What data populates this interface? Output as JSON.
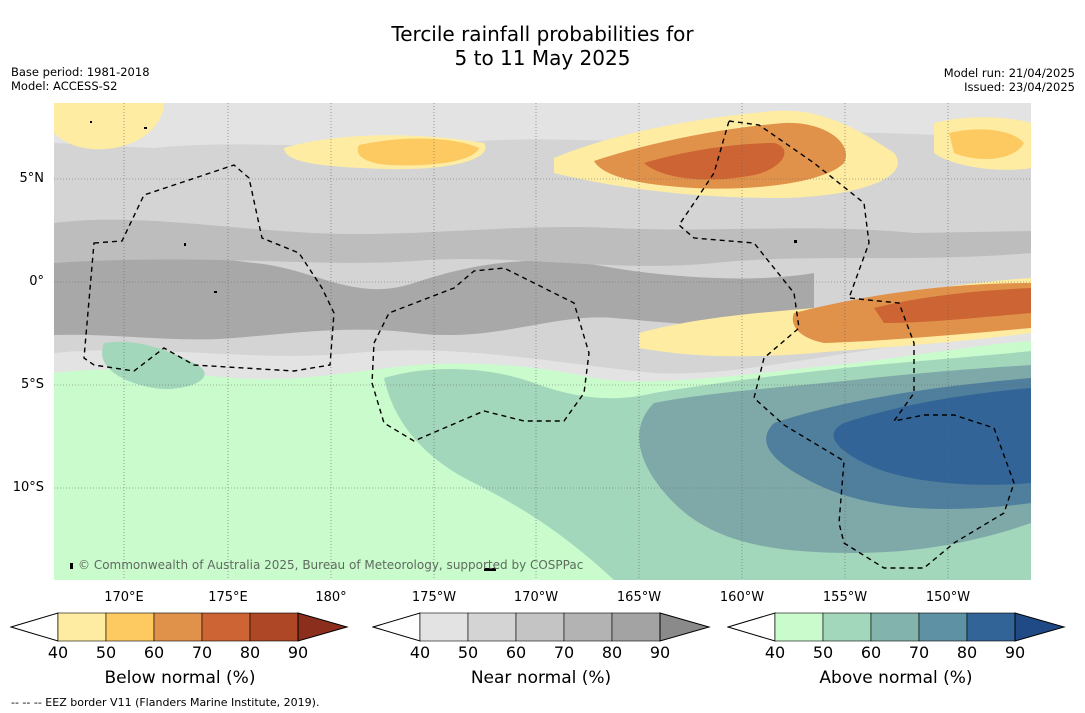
{
  "title_line1": "Tercile rainfall probabilities for",
  "title_line2": "5 to 11 May 2025",
  "base_period": "Base period: 1981-2018",
  "model": "Model: ACCESS-S2",
  "model_run": "Model run: 21/04/2025",
  "issued": "Issued: 23/04/2025",
  "copyright": "© Commonwealth of Australia 2025, Bureau of Meteorology, supported by COSPPac",
  "lat_labels": [
    "5°N",
    "0°",
    "5°S",
    "10°S"
  ],
  "lon_labels": [
    "170°E",
    "175°E",
    "180°",
    "175°W",
    "170°W",
    "165°W",
    "160°W",
    "155°W",
    "150°W"
  ],
  "colorbars": [
    {
      "title": "Below normal (%)",
      "ticks": [
        "40",
        "50",
        "60",
        "70",
        "80",
        "90"
      ],
      "colors": [
        "#ffffff",
        "#fdeca1",
        "#fdca62",
        "#e0914a",
        "#cd6433",
        "#ad4726",
        "#8b2f1c"
      ]
    },
    {
      "title": "Near normal (%)",
      "ticks": [
        "40",
        "50",
        "60",
        "70",
        "80",
        "90"
      ],
      "colors": [
        "#ffffff",
        "#e3e3e3",
        "#d4d4d4",
        "#c4c4c4",
        "#b3b3b3",
        "#a3a3a3",
        "#8a8a8a"
      ]
    },
    {
      "title": "Above normal (%)",
      "ticks": [
        "40",
        "50",
        "60",
        "70",
        "80",
        "90"
      ],
      "colors": [
        "#ffffff",
        "#c9fbcc",
        "#a2d7bb",
        "#82b4ad",
        "#5e91a3",
        "#336497",
        "#1f4a86"
      ]
    }
  ],
  "eez_note": "--  --  -- EEZ border V11 (Flanders Marine Institute, 2019)."
}
